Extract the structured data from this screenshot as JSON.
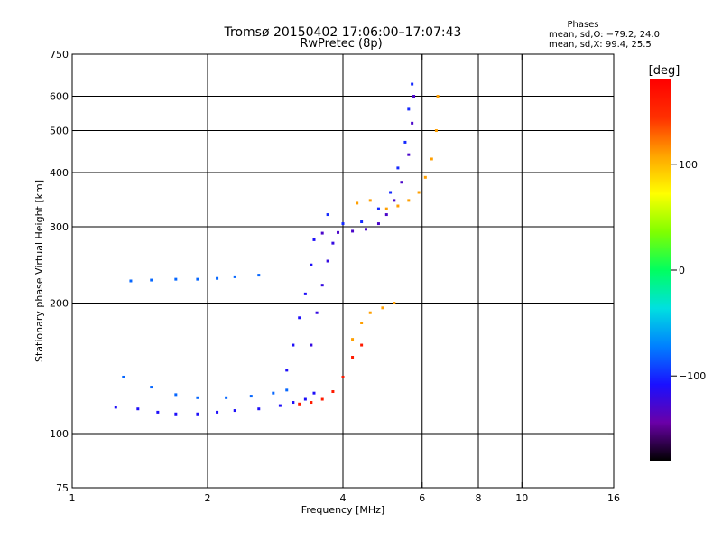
{
  "chart_data": {
    "type": "scatter",
    "title": "Tromsø 20150402 17:06:00–17:07:43",
    "subtitle": "RwPretec (8p)",
    "xlabel": "Frequency [MHz]",
    "ylabel": "Stationary phase Virtual Height [km]",
    "x_scale": "log",
    "y_scale": "log",
    "xlim": [
      1,
      16
    ],
    "ylim": [
      75,
      750
    ],
    "x_ticks": [
      1,
      2,
      4,
      6,
      8,
      10,
      16
    ],
    "x_tick_labels": [
      "1",
      "2",
      "4",
      "6",
      "8",
      "10",
      "16"
    ],
    "y_ticks": [
      75,
      100,
      200,
      300,
      400,
      500,
      600,
      750
    ],
    "y_tick_labels": [
      "75",
      "100",
      "200",
      "300",
      "400",
      "500",
      "600",
      "750"
    ],
    "grid": true,
    "phases_box": {
      "title": "Phases",
      "line_o": "mean, sd,O: −79.2, 24.0",
      "line_x": "mean, sd,X:  99.4, 25.5"
    },
    "colorbar": {
      "label": "[deg]",
      "range": [
        -180,
        180
      ],
      "ticks": [
        100,
        0,
        -100
      ],
      "tick_labels": [
        "100",
        "0",
        "−100"
      ],
      "colormap": [
        "#000000",
        "#6a00a8",
        "#1a10ff",
        "#0080ff",
        "#00e0e0",
        "#00ff60",
        "#80ff00",
        "#ffff00",
        "#ffa500",
        "#ff3000",
        "#ff0000"
      ]
    },
    "series": [
      {
        "values": [
          [
            1.25,
            115
          ],
          [
            1.4,
            114
          ],
          [
            1.55,
            112
          ],
          [
            1.7,
            111
          ],
          [
            1.9,
            111
          ],
          [
            2.1,
            112
          ],
          [
            2.3,
            113
          ],
          [
            2.6,
            114
          ],
          [
            2.9,
            116
          ],
          [
            3.1,
            118
          ],
          [
            3.3,
            120
          ],
          [
            3.45,
            124
          ]
        ],
        "phase": -110
      },
      {
        "values": [
          [
            1.3,
            135
          ],
          [
            1.5,
            128
          ],
          [
            1.7,
            123
          ],
          [
            1.9,
            121
          ],
          [
            2.2,
            121
          ],
          [
            2.5,
            122
          ],
          [
            2.8,
            124
          ],
          [
            3.0,
            126
          ]
        ],
        "phase": -80
      },
      {
        "values": [
          [
            1.35,
            225
          ],
          [
            1.5,
            226
          ],
          [
            1.7,
            227
          ],
          [
            1.9,
            227
          ],
          [
            2.1,
            228
          ],
          [
            2.3,
            230
          ],
          [
            2.6,
            232
          ]
        ],
        "phase": -80
      },
      {
        "values": [
          [
            3.0,
            140
          ],
          [
            3.1,
            160
          ],
          [
            3.2,
            185
          ],
          [
            3.3,
            210
          ],
          [
            3.4,
            245
          ],
          [
            3.45,
            280
          ]
        ],
        "phase": -110
      },
      {
        "values": [
          [
            3.2,
            117
          ],
          [
            3.4,
            118
          ],
          [
            3.6,
            120
          ],
          [
            3.8,
            125
          ],
          [
            4.0,
            135
          ],
          [
            4.2,
            150
          ],
          [
            4.4,
            160
          ]
        ],
        "phase": 160
      },
      {
        "values": [
          [
            3.4,
            160
          ],
          [
            3.5,
            190
          ],
          [
            3.6,
            220
          ],
          [
            3.7,
            250
          ],
          [
            3.8,
            275
          ]
        ],
        "phase": -120
      },
      {
        "values": [
          [
            3.6,
            290
          ],
          [
            3.9,
            291
          ],
          [
            4.2,
            293
          ],
          [
            4.5,
            296
          ],
          [
            4.8,
            305
          ],
          [
            5.0,
            320
          ],
          [
            5.2,
            345
          ],
          [
            5.4,
            380
          ],
          [
            5.6,
            440
          ],
          [
            5.7,
            520
          ],
          [
            5.75,
            600
          ]
        ],
        "phase": -130
      },
      {
        "values": [
          [
            3.7,
            320
          ],
          [
            4.0,
            305
          ],
          [
            4.4,
            308
          ],
          [
            4.8,
            330
          ],
          [
            5.1,
            360
          ],
          [
            5.3,
            410
          ],
          [
            5.5,
            470
          ],
          [
            5.6,
            560
          ],
          [
            5.7,
            640
          ]
        ],
        "phase": -100
      },
      {
        "values": [
          [
            4.2,
            165
          ],
          [
            4.4,
            180
          ],
          [
            4.6,
            190
          ],
          [
            4.9,
            195
          ],
          [
            5.2,
            200
          ]
        ],
        "phase": 110
      },
      {
        "values": [
          [
            4.3,
            340
          ],
          [
            4.6,
            345
          ],
          [
            5.0,
            330
          ],
          [
            5.3,
            335
          ],
          [
            5.6,
            345
          ],
          [
            5.9,
            360
          ],
          [
            6.1,
            390
          ],
          [
            6.3,
            430
          ],
          [
            6.45,
            500
          ],
          [
            6.5,
            600
          ]
        ],
        "phase": 110
      }
    ]
  }
}
